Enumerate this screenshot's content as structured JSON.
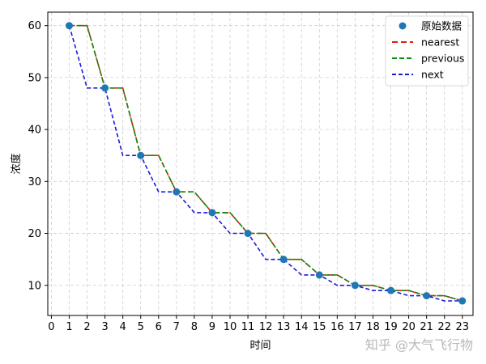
{
  "chart_data": {
    "type": "line",
    "xlabel": "时间",
    "ylabel": "浓度",
    "xlim": [
      -0.2,
      23.6
    ],
    "ylim": [
      4.2,
      62.6
    ],
    "x_ticks": [
      0,
      1,
      2,
      3,
      4,
      5,
      6,
      7,
      8,
      9,
      10,
      11,
      12,
      13,
      14,
      15,
      16,
      17,
      18,
      19,
      20,
      21,
      22,
      23
    ],
    "y_ticks": [
      10,
      20,
      30,
      40,
      50,
      60
    ],
    "grid": true,
    "legend_position": "top-right",
    "original": {
      "name": "原始数据",
      "x": [
        1,
        3,
        5,
        7,
        9,
        11,
        13,
        15,
        17,
        19,
        21,
        23
      ],
      "y": [
        60,
        48,
        35,
        28,
        24,
        20,
        15,
        12,
        10,
        9,
        8,
        7
      ],
      "color": "#1f77b4"
    },
    "series": [
      {
        "name": "nearest",
        "color": "#e8190e",
        "dash": "7,4",
        "x": [
          1,
          2,
          3,
          4,
          5,
          6,
          7,
          8,
          9,
          10,
          11,
          12,
          13,
          14,
          15,
          16,
          17,
          18,
          19,
          20,
          21,
          22,
          23
        ],
        "y": [
          60,
          60,
          48,
          48,
          35,
          35,
          28,
          28,
          24,
          24,
          20,
          20,
          15,
          15,
          12,
          12,
          10,
          10,
          9,
          9,
          8,
          8,
          7
        ]
      },
      {
        "name": "previous",
        "color": "#0e8a0e",
        "dash": "6,3",
        "x": [
          1,
          2,
          3,
          4,
          5,
          6,
          7,
          8,
          9,
          10,
          11,
          12,
          13,
          14,
          15,
          16,
          17,
          18,
          19,
          20,
          21,
          22,
          23
        ],
        "y": [
          60,
          60,
          48,
          48,
          35,
          35,
          28,
          28,
          24,
          24,
          20,
          20,
          15,
          15,
          12,
          12,
          10,
          10,
          9,
          9,
          8,
          8,
          7
        ]
      },
      {
        "name": "next",
        "color": "#1a1adb",
        "dash": "5,3",
        "x": [
          1,
          2,
          3,
          4,
          5,
          6,
          7,
          8,
          9,
          10,
          11,
          12,
          13,
          14,
          15,
          16,
          17,
          18,
          19,
          20,
          21,
          22,
          23
        ],
        "y": [
          60,
          48,
          48,
          35,
          35,
          28,
          28,
          24,
          24,
          20,
          20,
          15,
          15,
          12,
          12,
          10,
          10,
          9,
          9,
          8,
          8,
          7,
          7
        ]
      }
    ]
  },
  "watermark": "知乎 @大气飞行物"
}
